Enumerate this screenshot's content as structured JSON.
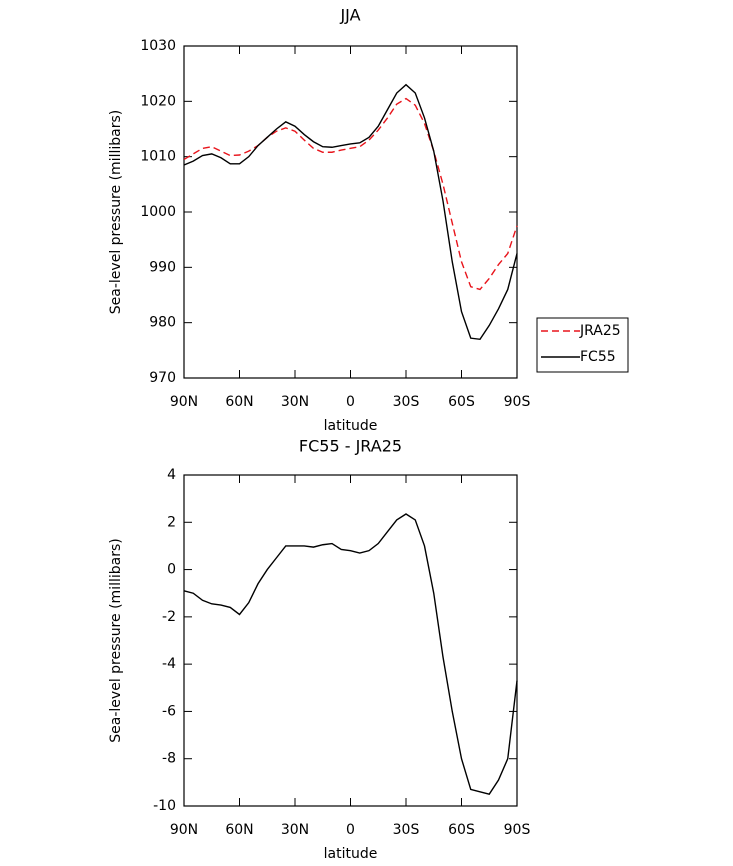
{
  "chart_data": [
    {
      "type": "line",
      "title": "JJA",
      "xlabel": "latitude",
      "ylabel": "Sea-level pressure (millibars)",
      "x": [
        90,
        85,
        80,
        75,
        70,
        65,
        60,
        55,
        50,
        45,
        40,
        35,
        30,
        25,
        20,
        15,
        10,
        5,
        0,
        -5,
        -10,
        -15,
        -20,
        -25,
        -30,
        -35,
        -40,
        -45,
        -50,
        -55,
        -60,
        -65,
        -70,
        -75,
        -80,
        -85,
        -90
      ],
      "xlim": [
        90,
        -90
      ],
      "xticks": [
        {
          "value": 90,
          "label": "90N"
        },
        {
          "value": 60,
          "label": "60N"
        },
        {
          "value": 30,
          "label": "30N"
        },
        0,
        {
          "value": -30,
          "label": "30S"
        },
        {
          "value": -60,
          "label": "60S"
        },
        {
          "value": -90,
          "label": "90S"
        }
      ],
      "ylim": [
        970,
        1030
      ],
      "yticks": [
        970,
        980,
        990,
        1000,
        1010,
        1020,
        1030
      ],
      "legend": "outside-right",
      "series": [
        {
          "name": "JRA25",
          "color": "#e8141b",
          "linestyle": "dashed",
          "values": [
            1009.5,
            1010.5,
            1011.5,
            1011.8,
            1011,
            1010.2,
            1010.3,
            1011,
            1012,
            1013.5,
            1014.6,
            1015.2,
            1014.6,
            1013,
            1011.5,
            1010.8,
            1010.8,
            1011.2,
            1011.5,
            1011.8,
            1013,
            1014.8,
            1017,
            1019.5,
            1020.5,
            1019.3,
            1016,
            1011,
            1005,
            998,
            991,
            986.5,
            986,
            988,
            990.5,
            992.5,
            997.5
          ]
        },
        {
          "name": "FC55",
          "color": "#000000",
          "linestyle": "solid",
          "values": [
            1008.5,
            1009.2,
            1010.2,
            1010.5,
            1009.8,
            1008.7,
            1008.7,
            1010,
            1012,
            1013.5,
            1015,
            1016.3,
            1015.5,
            1014,
            1012.7,
            1011.8,
            1011.7,
            1012,
            1012.3,
            1012.5,
            1013.5,
            1015.5,
            1018.5,
            1021.5,
            1023,
            1021.5,
            1017,
            1011,
            1002,
            991,
            982,
            977.2,
            977,
            979.5,
            982.5,
            986,
            992.5
          ]
        }
      ]
    },
    {
      "type": "line",
      "title": "FC55 - JRA25",
      "xlabel": "latitude",
      "ylabel": "Sea-level pressure (millibars)",
      "x": [
        90,
        85,
        80,
        75,
        70,
        65,
        60,
        55,
        50,
        45,
        40,
        35,
        30,
        25,
        20,
        15,
        10,
        5,
        0,
        -5,
        -10,
        -15,
        -20,
        -25,
        -30,
        -35,
        -40,
        -45,
        -50,
        -55,
        -60,
        -65,
        -70,
        -75,
        -80,
        -85,
        -90
      ],
      "xlim": [
        90,
        -90
      ],
      "xticks": [
        {
          "value": 90,
          "label": "90N"
        },
        {
          "value": 60,
          "label": "60N"
        },
        {
          "value": 30,
          "label": "30N"
        },
        0,
        {
          "value": -30,
          "label": "30S"
        },
        {
          "value": -60,
          "label": "60S"
        },
        {
          "value": -90,
          "label": "90S"
        }
      ],
      "ylim": [
        -10,
        4
      ],
      "yticks": [
        -10,
        -8,
        -6,
        -4,
        -2,
        0,
        2,
        4
      ],
      "series": [
        {
          "color": "#000000",
          "linestyle": "solid",
          "values": [
            -0.9,
            -1.0,
            -1.3,
            -1.45,
            -1.5,
            -1.6,
            -1.9,
            -1.4,
            -0.6,
            0.0,
            0.5,
            1.0,
            1.0,
            1.0,
            0.95,
            1.05,
            1.1,
            0.85,
            0.8,
            0.7,
            0.8,
            1.1,
            1.6,
            2.1,
            2.35,
            2.1,
            1.0,
            -1.0,
            -3.7,
            -6.0,
            -8.0,
            -9.3,
            -9.4,
            -9.5,
            -8.9,
            -8.0,
            -4.7
          ]
        }
      ]
    }
  ]
}
